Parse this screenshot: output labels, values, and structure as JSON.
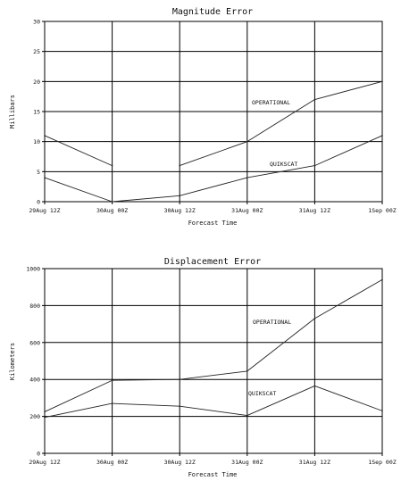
{
  "chart_data": [
    {
      "type": "line",
      "title": "Magnitude Error",
      "xlabel": "Forecast Time",
      "ylabel": "Millibars",
      "categories": [
        "29Aug 12Z",
        "30Aug 00Z",
        "30Aug 12Z",
        "31Aug 00Z",
        "31Aug 12Z",
        "1Sep 00Z"
      ],
      "ylim": [
        0,
        30
      ],
      "yticks": [
        "0",
        "5",
        "10",
        "15",
        "20",
        "25",
        "30"
      ],
      "grid": true,
      "series": [
        {
          "name": "OPERATIONAL",
          "values": [
            11,
            6,
            6,
            10,
            17,
            20
          ],
          "breaks": [
            1
          ]
        },
        {
          "name": "QUIKSCAT",
          "values": [
            4,
            0,
            1,
            4,
            6,
            11
          ],
          "breaks": []
        }
      ]
    },
    {
      "type": "line",
      "title": "Displacement Error",
      "xlabel": "Forecast Time",
      "ylabel": "Kilometers",
      "categories": [
        "29Aug 12Z",
        "30Aug 00Z",
        "30Aug 12Z",
        "31Aug 00Z",
        "31Aug 12Z",
        "1Sep 00Z"
      ],
      "ylim": [
        0,
        1000
      ],
      "yticks": [
        "0",
        "200",
        "400",
        "600",
        "800",
        "1000"
      ],
      "grid": true,
      "series": [
        {
          "name": "OPERATIONAL",
          "values": [
            225,
            395,
            400,
            445,
            730,
            940
          ],
          "breaks": []
        },
        {
          "name": "QUIKSCAT",
          "values": [
            195,
            270,
            255,
            205,
            365,
            230
          ],
          "breaks": []
        }
      ]
    }
  ]
}
